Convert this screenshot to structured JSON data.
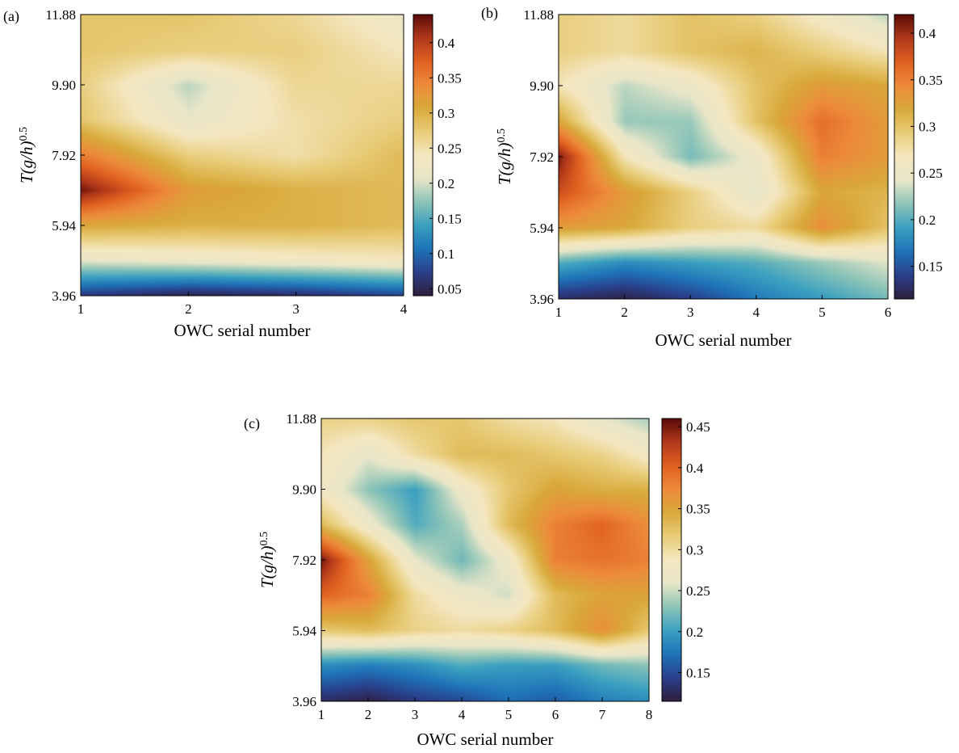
{
  "colors": {
    "colormap": [
      "#2e1e3c",
      "#2a3f8a",
      "#1f73b8",
      "#3aa0c0",
      "#8cc4b8",
      "#e8e6c8",
      "#f4e7c0",
      "#e8cc78",
      "#d9a93a",
      "#ed8a3a",
      "#e06020",
      "#b0381a",
      "#5a0a08"
    ]
  },
  "chart_data": [
    {
      "type": "heatmap",
      "panel_label": "(a)",
      "xlabel": "OWC serial number",
      "ylabel_main": "T(g/h)",
      "ylabel_sup": "0.5",
      "x": [
        1,
        2,
        3,
        4
      ],
      "x_tick_labels": [
        "1",
        "2",
        "3",
        "4"
      ],
      "y": [
        3.96,
        4.95,
        5.94,
        6.93,
        7.92,
        8.91,
        9.9,
        10.89,
        11.88
      ],
      "y_tick_labels": [
        "3.96",
        "5.94",
        "7.92",
        "9.90",
        "11.88"
      ],
      "xlim": [
        1,
        4
      ],
      "ylim": [
        3.96,
        11.88
      ],
      "clim": [
        0.04,
        0.44
      ],
      "colorbar_ticks": [
        0.05,
        0.1,
        0.15,
        0.2,
        0.25,
        0.3,
        0.35,
        0.4
      ],
      "colorbar_tick_labels": [
        "0.05",
        "0.1",
        "0.15",
        "0.2",
        "0.25",
        "0.3",
        "0.35",
        "0.4"
      ],
      "z": [
        [
          0.07,
          0.05,
          0.06,
          0.08
        ],
        [
          0.21,
          0.22,
          0.23,
          0.24
        ],
        [
          0.31,
          0.3,
          0.3,
          0.29
        ],
        [
          0.43,
          0.32,
          0.3,
          0.29
        ],
        [
          0.35,
          0.27,
          0.25,
          0.29
        ],
        [
          0.28,
          0.21,
          0.25,
          0.27
        ],
        [
          0.27,
          0.19,
          0.26,
          0.26
        ],
        [
          0.28,
          0.27,
          0.27,
          0.24
        ],
        [
          0.28,
          0.28,
          0.26,
          0.22
        ]
      ]
    },
    {
      "type": "heatmap",
      "panel_label": "(b)",
      "xlabel": "OWC serial number",
      "ylabel_main": "T(g/h)",
      "ylabel_sup": "0.5",
      "x": [
        1,
        2,
        3,
        4,
        5,
        6
      ],
      "x_tick_labels": [
        "1",
        "2",
        "3",
        "4",
        "5",
        "6"
      ],
      "y": [
        3.96,
        4.95,
        5.94,
        6.93,
        7.92,
        8.91,
        9.9,
        10.89,
        11.88
      ],
      "y_tick_labels": [
        "3.96",
        "5.94",
        "7.92",
        "9.90",
        "11.88"
      ],
      "xlim": [
        1,
        6
      ],
      "ylim": [
        3.96,
        11.88
      ],
      "clim": [
        0.115,
        0.42
      ],
      "colorbar_ticks": [
        0.15,
        0.2,
        0.25,
        0.3,
        0.35,
        0.4
      ],
      "colorbar_tick_labels": [
        "0.15",
        "0.2",
        "0.25",
        "0.3",
        "0.35",
        "0.4"
      ],
      "z": [
        [
          0.13,
          0.12,
          0.14,
          0.17,
          0.19,
          0.21
        ],
        [
          0.2,
          0.18,
          0.19,
          0.2,
          0.22,
          0.24
        ],
        [
          0.33,
          0.32,
          0.29,
          0.28,
          0.34,
          0.3
        ],
        [
          0.38,
          0.33,
          0.29,
          0.24,
          0.32,
          0.31
        ],
        [
          0.41,
          0.27,
          0.21,
          0.25,
          0.35,
          0.33
        ],
        [
          0.32,
          0.22,
          0.22,
          0.3,
          0.36,
          0.33
        ],
        [
          0.27,
          0.23,
          0.25,
          0.3,
          0.33,
          0.32
        ],
        [
          0.29,
          0.28,
          0.3,
          0.31,
          0.29,
          0.27
        ],
        [
          0.29,
          0.28,
          0.3,
          0.29,
          0.26,
          0.23
        ]
      ]
    },
    {
      "type": "heatmap",
      "panel_label": "(c)",
      "xlabel": "OWC serial number",
      "ylabel_main": "T(g/h)",
      "ylabel_sup": "0.5",
      "x": [
        1,
        2,
        3,
        4,
        5,
        6,
        7,
        8
      ],
      "x_tick_labels": [
        "1",
        "2",
        "3",
        "4",
        "5",
        "6",
        "7",
        "8"
      ],
      "y": [
        3.96,
        4.95,
        5.94,
        6.93,
        7.92,
        8.91,
        9.9,
        10.89,
        11.88
      ],
      "y_tick_labels": [
        "3.96",
        "5.94",
        "7.92",
        "9.90",
        "11.88"
      ],
      "xlim": [
        1,
        8
      ],
      "ylim": [
        3.96,
        11.88
      ],
      "clim": [
        0.115,
        0.46
      ],
      "colorbar_ticks": [
        0.15,
        0.2,
        0.25,
        0.3,
        0.35,
        0.4,
        0.45
      ],
      "colorbar_tick_labels": [
        "0.15",
        "0.2",
        "0.25",
        "0.3",
        "0.35",
        "0.4",
        "0.45"
      ],
      "z": [
        [
          0.13,
          0.12,
          0.14,
          0.15,
          0.17,
          0.16,
          0.18,
          0.19
        ],
        [
          0.19,
          0.18,
          0.19,
          0.21,
          0.2,
          0.2,
          0.22,
          0.23
        ],
        [
          0.32,
          0.33,
          0.31,
          0.3,
          0.31,
          0.33,
          0.37,
          0.32
        ],
        [
          0.4,
          0.38,
          0.3,
          0.27,
          0.25,
          0.33,
          0.35,
          0.35
        ],
        [
          0.45,
          0.35,
          0.26,
          0.22,
          0.27,
          0.38,
          0.39,
          0.38
        ],
        [
          0.33,
          0.27,
          0.21,
          0.24,
          0.33,
          0.38,
          0.4,
          0.37
        ],
        [
          0.28,
          0.23,
          0.2,
          0.27,
          0.32,
          0.35,
          0.34,
          0.34
        ],
        [
          0.29,
          0.26,
          0.3,
          0.33,
          0.33,
          0.32,
          0.31,
          0.28
        ],
        [
          0.31,
          0.31,
          0.32,
          0.32,
          0.3,
          0.29,
          0.26,
          0.24
        ]
      ]
    }
  ]
}
